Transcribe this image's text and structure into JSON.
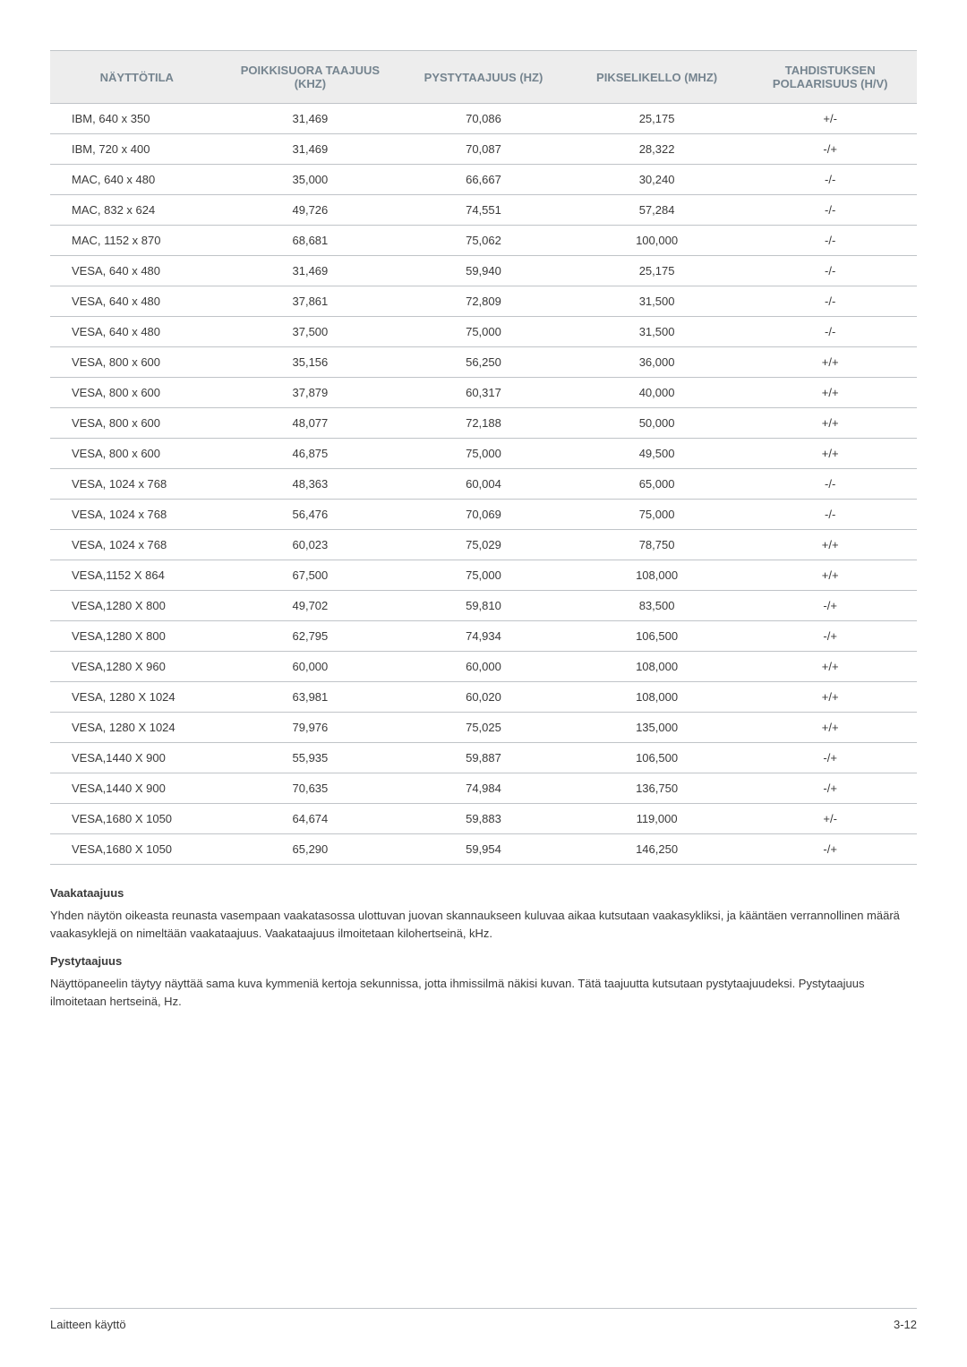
{
  "table": {
    "headers": {
      "mode": "NÄYTTÖTILA",
      "hfreq": "POIKKISUORA TAAJUUS (KHZ)",
      "vfreq": "PYSTYTAAJUUS (HZ)",
      "pixel": "PIKSELIKELLO (MHZ)",
      "sync": "TAHDISTUKSEN POLAARISUUS (H/V)"
    },
    "rows": [
      {
        "mode": "IBM, 640 x 350",
        "hfreq": "31,469",
        "vfreq": "70,086",
        "pixel": "25,175",
        "sync": "+/-"
      },
      {
        "mode": "IBM, 720 x 400",
        "hfreq": "31,469",
        "vfreq": "70,087",
        "pixel": "28,322",
        "sync": "-/+"
      },
      {
        "mode": "MAC, 640 x 480",
        "hfreq": "35,000",
        "vfreq": "66,667",
        "pixel": "30,240",
        "sync": "-/-"
      },
      {
        "mode": "MAC, 832 x 624",
        "hfreq": "49,726",
        "vfreq": "74,551",
        "pixel": "57,284",
        "sync": "-/-"
      },
      {
        "mode": "MAC, 1152 x 870",
        "hfreq": "68,681",
        "vfreq": "75,062",
        "pixel": "100,000",
        "sync": "-/-"
      },
      {
        "mode": "VESA, 640 x 480",
        "hfreq": "31,469",
        "vfreq": "59,940",
        "pixel": "25,175",
        "sync": "-/-"
      },
      {
        "mode": "VESA, 640 x 480",
        "hfreq": "37,861",
        "vfreq": "72,809",
        "pixel": "31,500",
        "sync": "-/-"
      },
      {
        "mode": "VESA, 640 x 480",
        "hfreq": "37,500",
        "vfreq": "75,000",
        "pixel": "31,500",
        "sync": "-/-"
      },
      {
        "mode": "VESA, 800 x 600",
        "hfreq": "35,156",
        "vfreq": "56,250",
        "pixel": "36,000",
        "sync": "+/+"
      },
      {
        "mode": "VESA, 800 x 600",
        "hfreq": "37,879",
        "vfreq": "60,317",
        "pixel": "40,000",
        "sync": "+/+"
      },
      {
        "mode": "VESA, 800 x 600",
        "hfreq": "48,077",
        "vfreq": "72,188",
        "pixel": "50,000",
        "sync": "+/+"
      },
      {
        "mode": "VESA, 800 x 600",
        "hfreq": "46,875",
        "vfreq": "75,000",
        "pixel": "49,500",
        "sync": "+/+"
      },
      {
        "mode": "VESA, 1024 x 768",
        "hfreq": "48,363",
        "vfreq": "60,004",
        "pixel": "65,000",
        "sync": "-/-"
      },
      {
        "mode": "VESA, 1024 x 768",
        "hfreq": "56,476",
        "vfreq": "70,069",
        "pixel": "75,000",
        "sync": "-/-"
      },
      {
        "mode": "VESA, 1024 x 768",
        "hfreq": "60,023",
        "vfreq": "75,029",
        "pixel": "78,750",
        "sync": "+/+"
      },
      {
        "mode": "VESA,1152 X 864",
        "hfreq": "67,500",
        "vfreq": "75,000",
        "pixel": "108,000",
        "sync": "+/+"
      },
      {
        "mode": "VESA,1280 X 800",
        "hfreq": "49,702",
        "vfreq": "59,810",
        "pixel": "83,500",
        "sync": "-/+"
      },
      {
        "mode": "VESA,1280 X 800",
        "hfreq": "62,795",
        "vfreq": "74,934",
        "pixel": "106,500",
        "sync": "-/+"
      },
      {
        "mode": "VESA,1280 X 960",
        "hfreq": "60,000",
        "vfreq": "60,000",
        "pixel": "108,000",
        "sync": "+/+"
      },
      {
        "mode": "VESA, 1280 X 1024",
        "hfreq": "63,981",
        "vfreq": "60,020",
        "pixel": "108,000",
        "sync": "+/+"
      },
      {
        "mode": "VESA, 1280 X 1024",
        "hfreq": "79,976",
        "vfreq": "75,025",
        "pixel": "135,000",
        "sync": "+/+"
      },
      {
        "mode": "VESA,1440 X 900",
        "hfreq": "55,935",
        "vfreq": "59,887",
        "pixel": "106,500",
        "sync": "-/+"
      },
      {
        "mode": "VESA,1440 X 900",
        "hfreq": "70,635",
        "vfreq": "74,984",
        "pixel": "136,750",
        "sync": "-/+"
      },
      {
        "mode": "VESA,1680 X 1050",
        "hfreq": "64,674",
        "vfreq": "59,883",
        "pixel": "119,000",
        "sync": "+/-"
      },
      {
        "mode": "VESA,1680 X 1050",
        "hfreq": "65,290",
        "vfreq": "59,954",
        "pixel": "146,250",
        "sync": "-/+"
      }
    ]
  },
  "sections": {
    "horizontal": {
      "title": "Vaakataajuus",
      "text": "Yhden näytön oikeasta reunasta vasempaan vaakatasossa ulottuvan juovan skannaukseen kuluvaa aikaa kutsutaan vaakasykliksi, ja kääntäen verrannollinen määrä vaakasyklejä on nimeltään vaakataajuus. Vaakataajuus ilmoitetaan kilohertseinä, kHz."
    },
    "vertical": {
      "title": "Pystytaajuus",
      "text": "Näyttöpaneelin täytyy näyttää sama kuva kymmeniä kertoja sekunnissa, jotta ihmissilmä näkisi kuvan. Tätä taajuutta kutsutaan pystytaajuudeksi. Pystytaajuus ilmoitetaan hertseinä, Hz."
    }
  },
  "footer": {
    "left": "Laitteen käyttö",
    "right": "3-12"
  }
}
